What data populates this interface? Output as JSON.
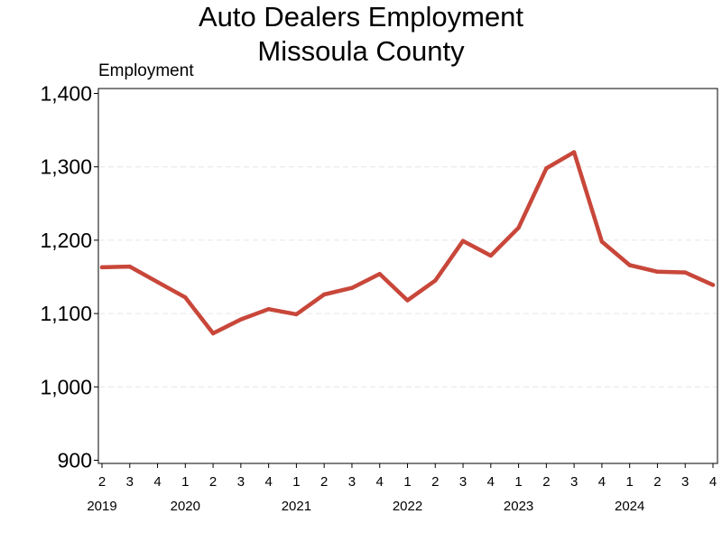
{
  "chart_data": {
    "type": "line",
    "title_lines": [
      "Auto Dealers Employment",
      "Missoula County"
    ],
    "ylabel": "Employment",
    "xlabel": "",
    "ylim": [
      900,
      1400
    ],
    "yticks": [
      900,
      1000,
      1100,
      1200,
      1300,
      1400
    ],
    "ytick_labels": [
      "900",
      "1,000",
      "1,100",
      "1,200",
      "1,300",
      "1,400"
    ],
    "grid": "horizontal dashed",
    "line_color": "#C8473A",
    "x": [
      "2019 Q2",
      "2019 Q3",
      "2019 Q4",
      "2020 Q1",
      "2020 Q2",
      "2020 Q3",
      "2020 Q4",
      "2021 Q1",
      "2021 Q2",
      "2021 Q3",
      "2021 Q4",
      "2022 Q1",
      "2022 Q2",
      "2022 Q3",
      "2022 Q4",
      "2023 Q1",
      "2023 Q2",
      "2023 Q3",
      "2023 Q4",
      "2024 Q1",
      "2024 Q2",
      "2024 Q3",
      "2024 Q4"
    ],
    "quarter_labels": [
      "2",
      "3",
      "4",
      "1",
      "2",
      "3",
      "4",
      "1",
      "2",
      "3",
      "4",
      "1",
      "2",
      "3",
      "4",
      "1",
      "2",
      "3",
      "4",
      "1",
      "2",
      "3",
      "4"
    ],
    "years": [
      {
        "label": "2019",
        "first_index": 0,
        "last_index": 0
      },
      {
        "label": "2020",
        "first_index": 1,
        "last_index": 5
      },
      {
        "label": "2021",
        "first_index": 5,
        "last_index": 9
      },
      {
        "label": "2022",
        "first_index": 9,
        "last_index": 13
      },
      {
        "label": "2023",
        "first_index": 13,
        "last_index": 17
      },
      {
        "label": "2024",
        "first_index": 17,
        "last_index": 21
      }
    ],
    "series": [
      {
        "values": [
          1163,
          1164,
          1143,
          1122,
          1073,
          1092,
          1106,
          1099,
          1126,
          1135,
          1154,
          1118,
          1145,
          1199,
          1179,
          1217,
          1298,
          1320,
          1198,
          1166,
          1157,
          1156,
          1139
        ]
      }
    ]
  }
}
